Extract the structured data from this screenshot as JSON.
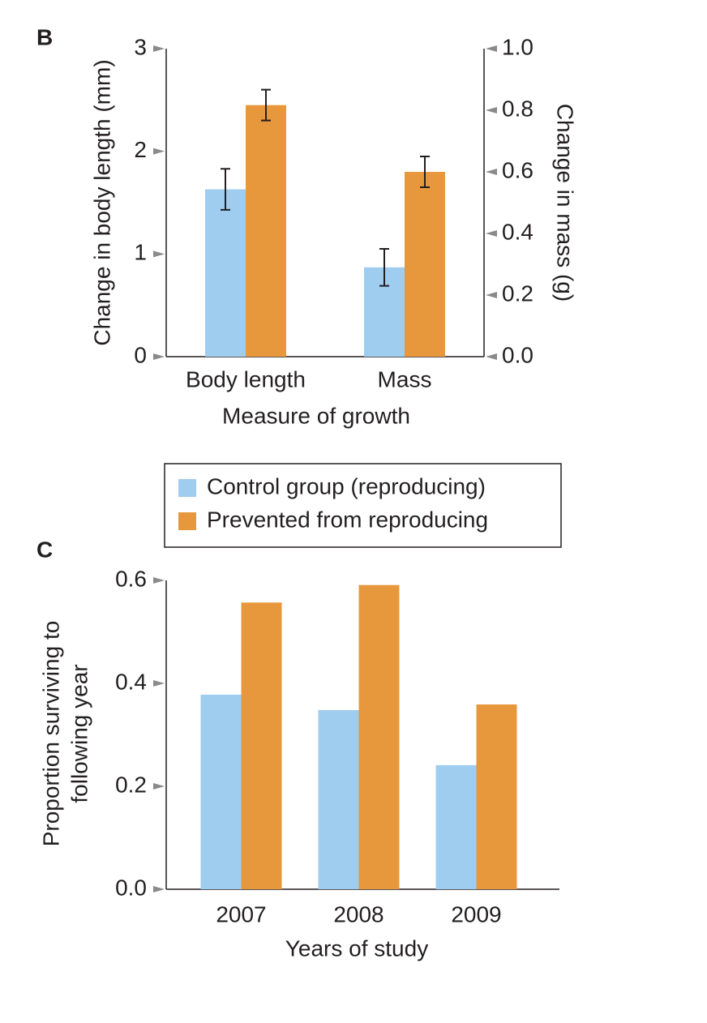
{
  "chart_data": [
    {
      "type": "bar",
      "panel": "B",
      "xlabel": "Measure of growth",
      "ylabel": "Change in body length (mm)",
      "y2label": "Change in mass (g)",
      "categories": [
        "Body length",
        "Mass"
      ],
      "category_axes": [
        "y",
        "y2"
      ],
      "series": [
        {
          "name": "Control group (reproducing)",
          "color": "#9fcdef",
          "values": [
            1.63,
            0.29
          ],
          "errors": [
            0.2,
            0.06
          ]
        },
        {
          "name": "Prevented from reproducing",
          "color": "#e8983c",
          "values": [
            2.45,
            0.6
          ],
          "errors": [
            0.15,
            0.05
          ]
        }
      ],
      "ylim": [
        0,
        3
      ],
      "yticks": [
        0,
        1,
        2,
        3
      ],
      "y2lim": [
        0,
        1
      ],
      "y2ticks": [
        {
          "value": 0,
          "label": "0.0"
        },
        0.2,
        0.4,
        0.6,
        0.8,
        {
          "value": 1,
          "label": "1.0"
        }
      ]
    },
    {
      "type": "bar",
      "panel": "C",
      "xlabel": "Years of study",
      "ylabel": [
        "Proportion surviving to",
        "following year"
      ],
      "categories": [
        "2007",
        "2008",
        "2009"
      ],
      "series": [
        {
          "color": "#9fcdef",
          "values": [
            0.378,
            0.348,
            0.241
          ]
        },
        {
          "color": "#e8983c",
          "values": [
            0.557,
            0.591,
            0.359
          ]
        }
      ],
      "ylim": [
        0,
        0.6
      ],
      "yticks": [
        {
          "value": 0,
          "label": "0.0"
        },
        0.2,
        0.4,
        0.6
      ]
    }
  ]
}
